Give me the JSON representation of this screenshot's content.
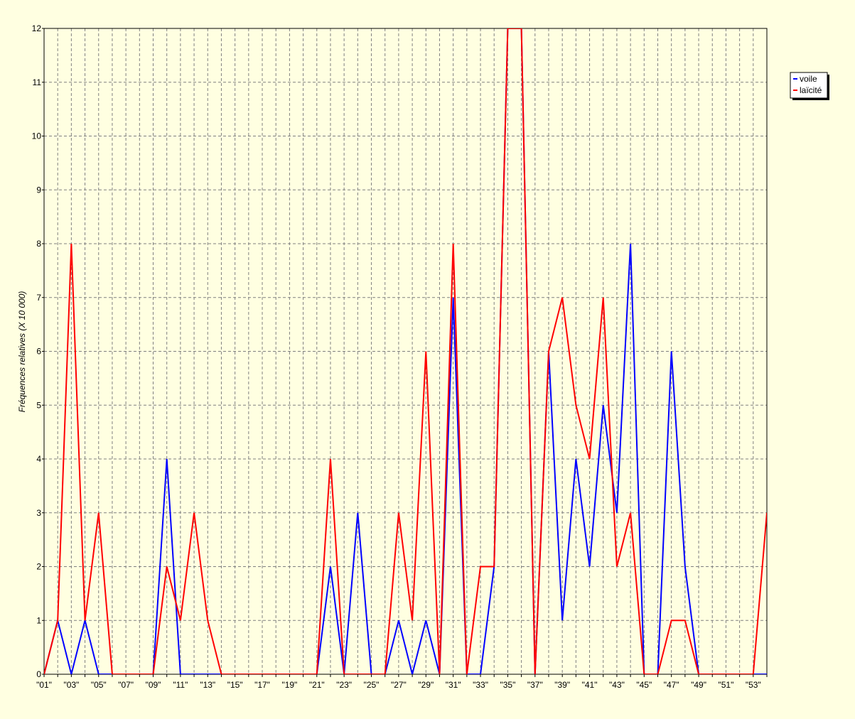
{
  "chart_data": {
    "type": "line",
    "y_label": "Fréquences relatives (X 10 000)",
    "categories": [
      "\"01\"",
      null,
      "\"03\"",
      null,
      "\"05\"",
      null,
      "\"07\"",
      null,
      "\"09\"",
      null,
      "\"11\"",
      null,
      "\"13\"",
      null,
      "\"15\"",
      null,
      "\"17\"",
      null,
      "\"19\"",
      null,
      "\"21\"",
      null,
      "\"23\"",
      null,
      "\"25\"",
      null,
      "\"27\"",
      null,
      "\"29\"",
      null,
      "\"31\"",
      null,
      "\"33\"",
      null,
      "\"35\"",
      null,
      "\"37\"",
      null,
      "\"39\"",
      null,
      "\"41\"",
      null,
      "\"43\"",
      null,
      "\"45\"",
      null,
      "\"47\"",
      null,
      "\"49\"",
      null,
      "\"51\"",
      null,
      "\"53\"",
      null
    ],
    "series": [
      {
        "name": "voile",
        "color": "#0000ff",
        "values": [
          0,
          1,
          0,
          1,
          0,
          0,
          0,
          0,
          0,
          4,
          0,
          0,
          0,
          0,
          0,
          0,
          0,
          0,
          0,
          0,
          0,
          2,
          0,
          3,
          0,
          0,
          1,
          0,
          1,
          0,
          7,
          0,
          0,
          2,
          12,
          12,
          0,
          6,
          1,
          4,
          2,
          5,
          3,
          8,
          0,
          0,
          6,
          2,
          0,
          0,
          0,
          0,
          0,
          0
        ]
      },
      {
        "name": "laïcité",
        "color": "#ff0000",
        "values": [
          0,
          1,
          8,
          1,
          3,
          0,
          0,
          0,
          0,
          2,
          1,
          3,
          1,
          0,
          0,
          0,
          0,
          0,
          0,
          0,
          0,
          4,
          0,
          0,
          0,
          0,
          3,
          1,
          6,
          0,
          8,
          0,
          2,
          2,
          12,
          12,
          0,
          6,
          7,
          5,
          4,
          7,
          2,
          3,
          0,
          0,
          1,
          1,
          0,
          0,
          0,
          0,
          0,
          3
        ]
      }
    ],
    "ylim": [
      0,
      12
    ],
    "yticks": [
      0,
      1,
      2,
      3,
      4,
      5,
      6,
      7,
      8,
      9,
      10,
      11,
      12
    ],
    "grid": true,
    "legend": "right"
  }
}
